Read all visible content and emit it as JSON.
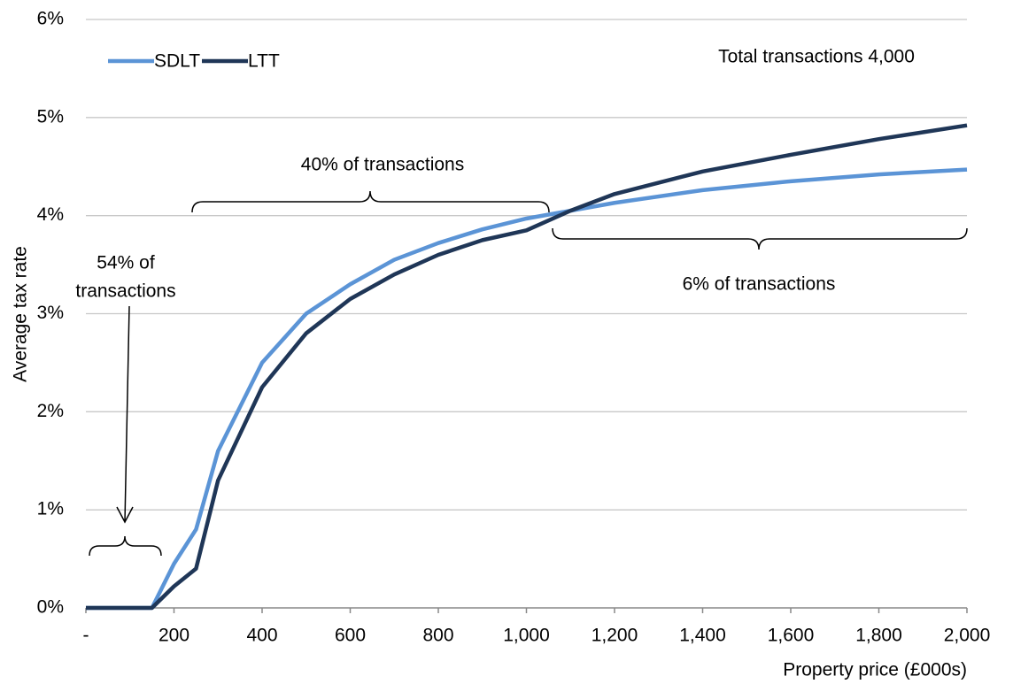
{
  "chart_data": {
    "type": "line",
    "x_label": "Property price (£000s)",
    "y_label": "Average tax rate",
    "x": [
      0,
      150,
      200,
      250,
      300,
      400,
      500,
      600,
      700,
      800,
      900,
      1000,
      1100,
      1200,
      1400,
      1600,
      1800,
      2000
    ],
    "series": [
      {
        "name": "SDLT",
        "color": "#5b94d6",
        "values": [
          0,
          0,
          0.45,
          0.8,
          1.6,
          2.5,
          3.0,
          3.3,
          3.55,
          3.72,
          3.86,
          3.97,
          4.05,
          4.13,
          4.26,
          4.35,
          4.42,
          4.47
        ]
      },
      {
        "name": "LTT",
        "color": "#1f3657",
        "values": [
          0,
          0,
          0.22,
          0.4,
          1.3,
          2.25,
          2.8,
          3.15,
          3.4,
          3.6,
          3.75,
          3.85,
          4.05,
          4.22,
          4.45,
          4.62,
          4.78,
          4.92
        ]
      }
    ],
    "xlim": [
      0,
      2000
    ],
    "xticks": [
      {
        "value": 0,
        "label": "-"
      },
      200,
      400,
      600,
      800,
      {
        "value": 1000,
        "label": "1,000"
      },
      {
        "value": 1200,
        "label": "1,200"
      },
      {
        "value": 1400,
        "label": "1,400"
      },
      {
        "value": 1600,
        "label": "1,600"
      },
      {
        "value": 1800,
        "label": "1,800"
      },
      {
        "value": 2000,
        "label": "2,000"
      }
    ],
    "ylim": [
      0,
      6
    ],
    "yticks": [
      {
        "value": 0,
        "label": "0%"
      },
      {
        "value": 1,
        "label": "1%"
      },
      {
        "value": 2,
        "label": "2%"
      },
      {
        "value": 3,
        "label": "3%"
      },
      {
        "value": 4,
        "label": "4%"
      },
      {
        "value": 5,
        "label": "5%"
      },
      {
        "value": 6,
        "label": "6%"
      }
    ],
    "grid": true,
    "legend": "top-left",
    "annotations": {
      "total": "Total transactions 4,000",
      "middle": "40% of transactions",
      "low": [
        "54% of",
        "transactions"
      ],
      "high": "6% of transactions"
    }
  }
}
